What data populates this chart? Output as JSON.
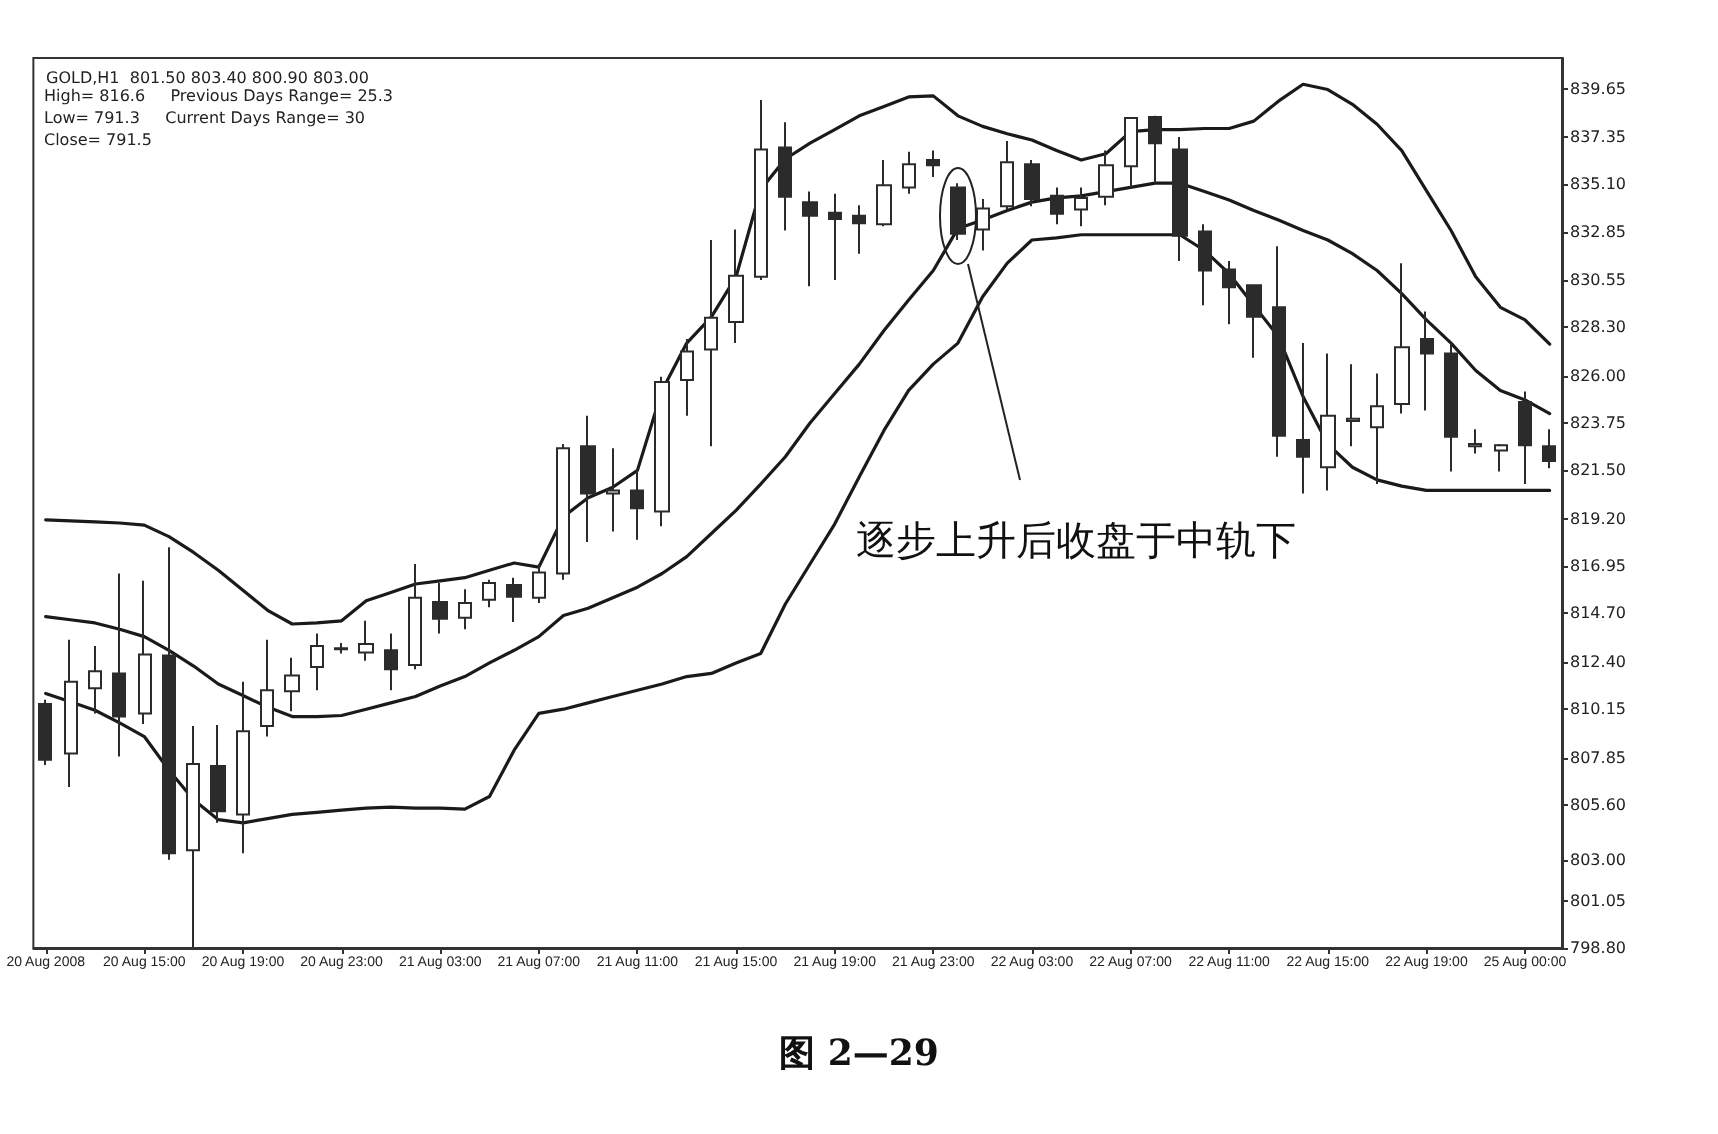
{
  "chart_data": {
    "type": "candlestick",
    "title": "GOLD,H1  801.50 803.40 800.90 803.00",
    "annotations": [
      "High= 816.6     Previous Days Range= 25.3",
      "Low= 791.3     Current Days Range= 30",
      "Close= 791.5",
      "逐步上升后收盘于中轨下",
      "图 2—29"
    ],
    "categories": [
      "20 Aug 2008",
      null,
      null,
      null,
      "20 Aug 15:00",
      null,
      null,
      null,
      "20 Aug 19:00",
      null,
      null,
      null,
      "20 Aug 23:00",
      null,
      null,
      null,
      "21 Aug 03:00",
      null,
      null,
      null,
      "21 Aug 07:00",
      null,
      null,
      null,
      "21 Aug 11:00",
      null,
      null,
      null,
      "21 Aug 15:00",
      null,
      null,
      null,
      "21 Aug 19:00",
      null,
      null,
      null,
      "21 Aug 23:00",
      null,
      null,
      null,
      "22 Aug 03:00",
      null,
      null,
      null,
      "22 Aug 07:00",
      null,
      null,
      null,
      "22 Aug 11:00",
      null,
      null,
      null,
      "22 Aug 15:00",
      null,
      null,
      null,
      "22 Aug 19:00",
      null,
      null,
      null,
      "25 Aug 00:00",
      null
    ],
    "ohlc": [
      [
        810.4,
        810.6,
        807.5,
        807.75
      ],
      [
        808.05,
        813.45,
        806.45,
        811.45
      ],
      [
        811.15,
        813.15,
        809.95,
        811.95
      ],
      [
        811.85,
        816.6,
        807.9,
        809.8
      ],
      [
        809.95,
        816.25,
        809.45,
        812.75
      ],
      [
        812.7,
        817.85,
        803.0,
        803.3
      ],
      [
        803.45,
        809.35,
        798.85,
        807.55
      ],
      [
        807.45,
        809.4,
        804.75,
        805.3
      ],
      [
        805.15,
        811.45,
        803.3,
        809.1
      ],
      [
        809.35,
        813.45,
        808.85,
        811.05
      ],
      [
        811.0,
        812.6,
        810.05,
        811.75
      ],
      [
        812.15,
        813.75,
        811.05,
        813.15
      ],
      [
        813.0,
        813.3,
        812.8,
        813.05
      ],
      [
        812.85,
        814.35,
        812.45,
        813.25
      ],
      [
        812.95,
        813.75,
        811.05,
        812.05
      ],
      [
        812.25,
        817.05,
        812.05,
        815.45
      ],
      [
        815.25,
        816.15,
        813.75,
        814.45
      ],
      [
        814.5,
        815.85,
        813.95,
        815.2
      ],
      [
        815.35,
        816.3,
        815.0,
        816.15
      ],
      [
        816.05,
        816.4,
        814.3,
        815.5
      ],
      [
        815.45,
        817.05,
        815.2,
        816.65
      ],
      [
        816.6,
        822.75,
        816.3,
        822.55
      ],
      [
        822.65,
        824.1,
        818.1,
        820.4
      ],
      [
        820.4,
        822.55,
        818.6,
        820.55
      ],
      [
        820.55,
        821.55,
        818.2,
        819.7
      ],
      [
        819.55,
        825.95,
        818.85,
        825.7
      ],
      [
        825.8,
        827.75,
        824.1,
        827.15
      ],
      [
        827.25,
        832.45,
        822.65,
        828.75
      ],
      [
        828.55,
        832.95,
        827.55,
        830.75
      ],
      [
        830.7,
        839.1,
        830.55,
        836.75
      ],
      [
        836.85,
        838.05,
        832.9,
        834.5
      ],
      [
        834.25,
        834.75,
        830.25,
        833.6
      ],
      [
        833.75,
        834.65,
        830.55,
        833.45
      ],
      [
        833.6,
        834.1,
        831.8,
        833.25
      ],
      [
        833.2,
        836.25,
        833.1,
        835.05
      ],
      [
        834.95,
        836.65,
        834.65,
        836.05
      ],
      [
        836.25,
        836.7,
        835.45,
        836.0
      ],
      [
        834.95,
        835.15,
        832.45,
        832.75
      ],
      [
        832.95,
        834.4,
        831.95,
        833.95
      ],
      [
        834.05,
        837.15,
        833.9,
        836.15
      ],
      [
        836.05,
        836.25,
        834.05,
        834.4
      ],
      [
        834.55,
        834.95,
        833.2,
        833.7
      ],
      [
        833.9,
        834.95,
        833.1,
        834.45
      ],
      [
        834.5,
        836.7,
        834.1,
        836.0
      ],
      [
        835.95,
        838.3,
        834.95,
        838.25
      ],
      [
        838.3,
        838.35,
        835.15,
        837.05
      ],
      [
        836.75,
        837.35,
        831.45,
        832.65
      ],
      [
        832.85,
        833.2,
        829.35,
        831.0
      ],
      [
        831.05,
        831.45,
        828.45,
        830.2
      ],
      [
        830.3,
        830.35,
        826.85,
        828.8
      ],
      [
        829.25,
        832.15,
        822.15,
        823.15
      ],
      [
        822.95,
        827.55,
        820.4,
        822.15
      ],
      [
        821.65,
        827.05,
        820.55,
        824.1
      ],
      [
        823.85,
        826.55,
        822.65,
        823.95
      ],
      [
        823.55,
        826.1,
        820.85,
        824.55
      ],
      [
        824.65,
        831.35,
        824.2,
        827.35
      ],
      [
        827.75,
        829.05,
        824.35,
        827.05
      ],
      [
        827.05,
        827.55,
        821.45,
        823.1
      ],
      [
        822.65,
        823.45,
        822.3,
        822.75
      ],
      [
        822.45,
        822.75,
        821.45,
        822.7
      ],
      [
        824.75,
        825.25,
        820.85,
        822.7
      ],
      [
        822.65,
        823.45,
        821.6,
        821.95
      ]
    ],
    "color": "#2b2b2b",
    "colors": [
      "#2b2b2b",
      "#ffffff",
      "#ffffff",
      "#2b2b2b",
      "#ffffff",
      "#2b2b2b",
      "#ffffff",
      "#2b2b2b",
      "#ffffff",
      "#ffffff",
      "#ffffff",
      "#ffffff",
      "#ffffff",
      "#ffffff",
      "#2b2b2b",
      "#ffffff",
      "#2b2b2b",
      "#ffffff",
      "#ffffff",
      "#2b2b2b",
      "#ffffff",
      "#ffffff",
      "#2b2b2b",
      "#ffffff",
      "#2b2b2b",
      "#ffffff",
      "#ffffff",
      "#ffffff",
      "#ffffff",
      "#ffffff",
      "#2b2b2b",
      "#2b2b2b",
      "#2b2b2b",
      "#2b2b2b",
      "#ffffff",
      "#ffffff",
      "#2b2b2b",
      "#2b2b2b",
      "#ffffff",
      "#ffffff",
      "#2b2b2b",
      "#2b2b2b",
      "#ffffff",
      "#ffffff",
      "#ffffff",
      "#2b2b2b",
      "#2b2b2b",
      "#2b2b2b",
      "#2b2b2b",
      "#2b2b2b",
      "#2b2b2b",
      "#2b2b2b",
      "#ffffff",
      "#ffffff",
      "#ffffff",
      "#ffffff",
      "#2b2b2b",
      "#2b2b2b",
      "#ffffff",
      "#ffffff",
      "#2b2b2b",
      "#2b2b2b"
    ],
    "series": [
      {
        "type": "line",
        "color": "#1a1a1a",
        "values": [
          819.15,
          819.1,
          819.05,
          819.0,
          818.9,
          818.35,
          817.6,
          816.75,
          815.8,
          814.85,
          814.2,
          814.25,
          814.35,
          815.3,
          815.7,
          816.1,
          816.25,
          816.4,
          816.75,
          817.1,
          816.9,
          819.3,
          820.2,
          820.7,
          821.5,
          825.3,
          827.55,
          828.8,
          830.7,
          834.85,
          836.3,
          837.05,
          837.7,
          838.35,
          838.8,
          839.25,
          839.3,
          838.35,
          837.85,
          837.5,
          837.2,
          836.7,
          836.25,
          836.55,
          837.6,
          837.7,
          837.7,
          837.75,
          837.75,
          838.1,
          839.05,
          839.85,
          839.6,
          838.9,
          837.95,
          836.7,
          834.8,
          832.9,
          830.7,
          829.25,
          828.65,
          827.5
        ]
      },
      {
        "type": "line",
        "color": "#1a1a1a",
        "values": [
          814.55,
          814.4,
          814.25,
          813.95,
          813.6,
          812.95,
          812.2,
          811.35,
          810.8,
          810.25,
          809.8,
          809.8,
          809.85,
          810.15,
          810.45,
          810.75,
          811.25,
          811.7,
          812.35,
          812.95,
          813.6,
          814.6,
          814.95,
          815.45,
          815.95,
          816.6,
          817.4,
          818.5,
          819.6,
          820.85,
          822.15,
          823.75,
          825.15,
          826.55,
          828.15,
          829.6,
          831.0,
          833.0,
          833.4,
          833.85,
          834.25,
          834.45,
          834.55,
          834.75,
          834.95,
          835.15,
          835.15,
          834.75,
          834.35,
          833.85,
          833.4,
          832.9,
          832.45,
          831.8,
          831.0,
          829.9,
          828.65,
          827.55,
          826.25,
          825.3,
          824.85,
          824.2
        ]
      },
      {
        "type": "line",
        "color": "#1a1a1a",
        "values": [
          810.9,
          810.5,
          810.1,
          809.5,
          808.85,
          807.25,
          805.85,
          804.9,
          804.75,
          804.95,
          805.15,
          805.25,
          805.35,
          805.45,
          805.5,
          805.45,
          805.45,
          805.4,
          806.0,
          808.2,
          809.95,
          810.15,
          810.45,
          810.75,
          811.05,
          811.35,
          811.7,
          811.85,
          812.35,
          812.8,
          815.15,
          817.05,
          818.95,
          821.2,
          823.4,
          825.3,
          826.55,
          827.55,
          829.75,
          831.35,
          832.45,
          832.55,
          832.7,
          832.7,
          832.7,
          832.7,
          832.7,
          831.95,
          830.85,
          829.35,
          827.85,
          825.0,
          822.75,
          821.65,
          821.05,
          820.75,
          820.55,
          820.55,
          820.55,
          820.55,
          820.55,
          820.55
        ]
      }
    ],
    "ylim": [
      798.8,
      841.1
    ],
    "yticks": [
      {
        "value": 798.8,
        "label": "798.80"
      },
      {
        "value": 801.05,
        "label": "801.05"
      },
      {
        "value": 803.0,
        "label": "803.00"
      },
      {
        "value": 805.6,
        "label": "805.60"
      },
      {
        "value": 807.85,
        "label": "807.85"
      },
      {
        "value": 810.15,
        "label": "810.15"
      },
      {
        "value": 812.4,
        "label": "812.40"
      },
      {
        "value": 814.7,
        "label": "814.70"
      },
      {
        "value": 816.95,
        "label": "816.95"
      },
      {
        "value": 819.2,
        "label": "819.20"
      },
      {
        "value": 821.5,
        "label": "821.50"
      },
      {
        "value": 823.75,
        "label": "823.75"
      },
      {
        "value": 826.0,
        "label": "826.00"
      },
      {
        "value": 828.3,
        "label": "828.30"
      },
      {
        "value": 830.55,
        "label": "830.55"
      },
      {
        "value": 832.85,
        "label": "832.85"
      },
      {
        "value": 835.1,
        "label": "835.10"
      },
      {
        "value": 837.35,
        "label": "837.35"
      },
      {
        "value": 839.65,
        "label": "839.65"
      }
    ],
    "marker": "none",
    "line_style": "solid"
  }
}
